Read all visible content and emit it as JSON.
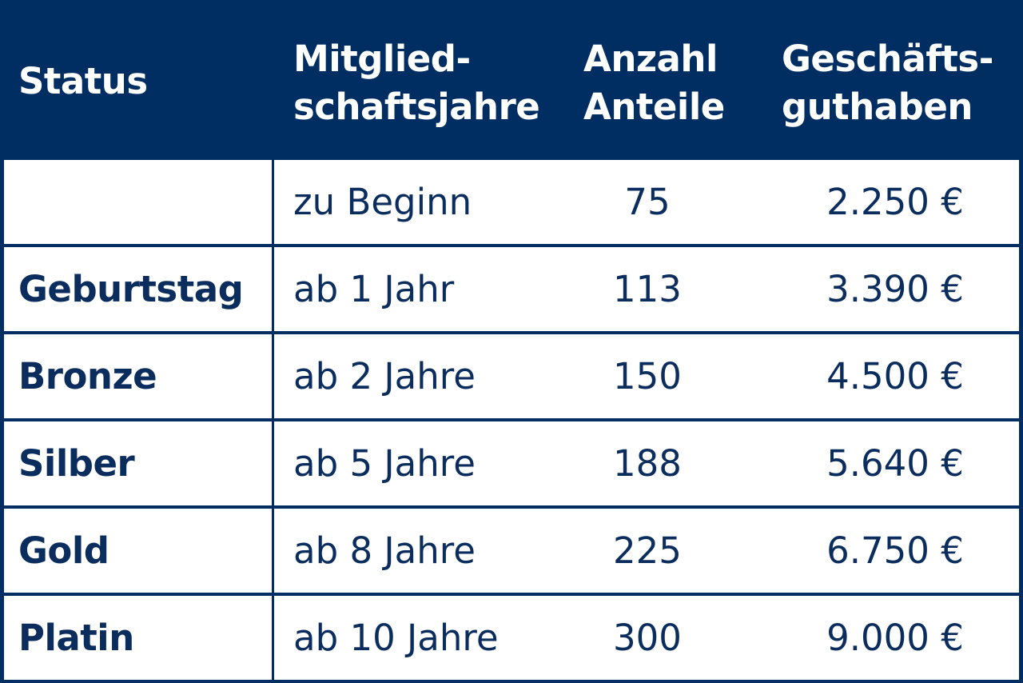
{
  "header": {
    "status": "Status",
    "years_line1": "Mitglied-",
    "years_line2": "schaftsjahre",
    "count_line1": "Anzahl",
    "count_line2": "Anteile",
    "credit_line1": "Geschäfts-",
    "credit_line2": "guthaben"
  },
  "rows": [
    {
      "status": "",
      "years": "zu Beginn",
      "count": "75",
      "credit": "2.250 €"
    },
    {
      "status": "Geburtstag",
      "years": "ab 1 Jahr",
      "count": "113",
      "credit": "3.390 €"
    },
    {
      "status": "Bronze",
      "years": "ab 2 Jahre",
      "count": "150",
      "credit": "4.500 €"
    },
    {
      "status": "Silber",
      "years": "ab 5 Jahre",
      "count": "188",
      "credit": "5.640 €"
    },
    {
      "status": "Gold",
      "years": "ab 8 Jahre",
      "count": "225",
      "credit": "6.750 €"
    },
    {
      "status": "Platin",
      "years": "ab 10 Jahre",
      "count": "300",
      "credit": "9.000 €"
    }
  ],
  "colors": {
    "header_bg": "#002e62",
    "cell_bg": "#ffffff",
    "text": "#0b2d5e"
  }
}
